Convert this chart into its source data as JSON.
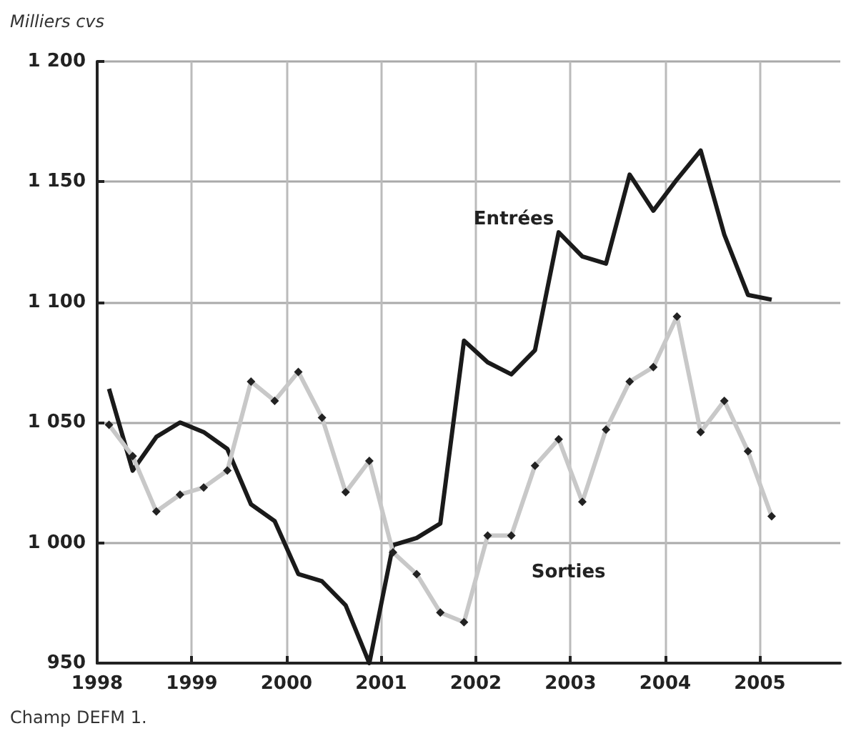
{
  "chart_data": {
    "type": "line",
    "ylabel": "Milliers cvs",
    "annotations": [
      "Champ DEFM 1."
    ],
    "x": [
      1998.125,
      1998.375,
      1998.625,
      1998.875,
      1999.125,
      1999.375,
      1999.625,
      1999.875,
      2000.125,
      2000.375,
      2000.625,
      2000.875,
      2001.125,
      2001.375,
      2001.625,
      2001.875,
      2002.125,
      2002.375,
      2002.625,
      2002.875,
      2003.125,
      2003.375,
      2003.625,
      2003.875,
      2004.125,
      2004.375,
      2004.625,
      2004.875,
      2005.125
    ],
    "series": [
      {
        "name": "Entrées",
        "color": "#1a1a1a",
        "marker": "none",
        "values": [
          1064,
          1030,
          1044,
          1050,
          1046,
          1039,
          1016,
          1009,
          987,
          984,
          974,
          950,
          999,
          1002,
          1008,
          1084,
          1075,
          1070,
          1080,
          1129,
          1119,
          1116,
          1153,
          1138,
          1151,
          1163,
          1128,
          1103,
          1101
        ]
      },
      {
        "name": "Sorties",
        "color": "#c8c8c8",
        "marker": "diamond",
        "values": [
          1049,
          1036,
          1013,
          1020,
          1023,
          1030,
          1067,
          1059,
          1071,
          1052,
          1021,
          1034,
          996,
          987,
          971,
          967,
          1003,
          1003,
          1032,
          1043,
          1017,
          1047,
          1067,
          1073,
          1094,
          1046,
          1059,
          1038,
          1011
        ]
      }
    ],
    "xlim": [
      1998,
      2005.85
    ],
    "xticks": [
      1998,
      1999,
      2000,
      2001,
      2002,
      2003,
      2004,
      2005
    ],
    "ylim": [
      950,
      1200
    ],
    "yticks": [
      950,
      1000,
      1050,
      1100,
      1150,
      1200
    ],
    "grid": true,
    "legend": false
  }
}
